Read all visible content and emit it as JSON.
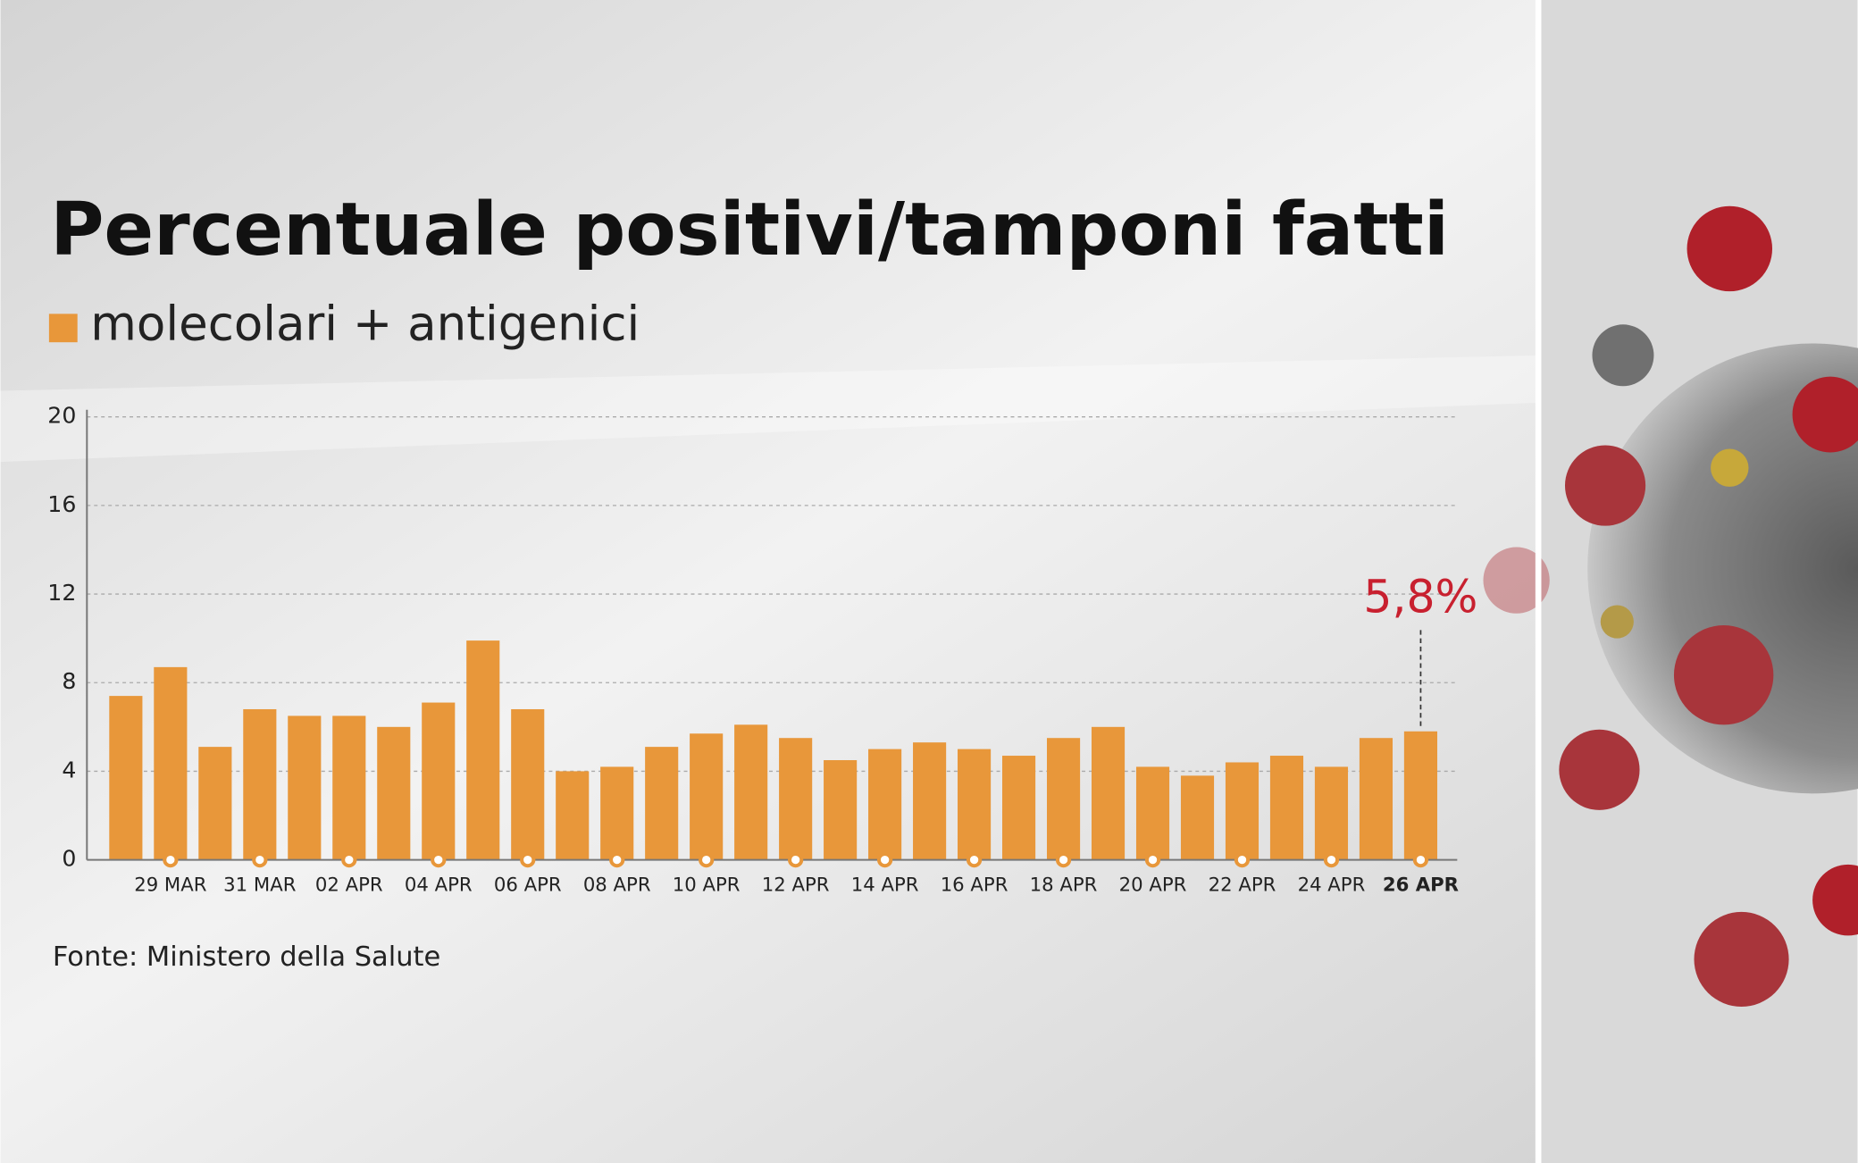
{
  "chart_data": {
    "type": "bar",
    "title": "Percentuale positivi/tamponi fatti",
    "source": "Fonte: Ministero della Salute",
    "categories": [
      null,
      "29 MAR",
      null,
      "31 MAR",
      null,
      "02 APR",
      null,
      "04 APR",
      null,
      "06 APR",
      null,
      "08 APR",
      null,
      "10 APR",
      null,
      "12 APR",
      null,
      "14 APR",
      null,
      "16 APR",
      null,
      "18 APR",
      null,
      "20 APR",
      null,
      "22 APR",
      null,
      "24 APR",
      null,
      "26 APR"
    ],
    "series": [
      {
        "name": "molecolari + antigenici",
        "color": "#e8973a",
        "values": [
          7.4,
          8.7,
          5.1,
          6.8,
          6.5,
          6.5,
          6.0,
          7.1,
          9.9,
          6.8,
          4.0,
          4.2,
          5.1,
          5.7,
          6.1,
          5.5,
          4.5,
          5.0,
          5.3,
          5.0,
          4.7,
          5.5,
          6.0,
          4.2,
          3.8,
          4.4,
          4.7,
          4.2,
          5.5,
          5.8
        ],
        "value_labels": [
          null,
          null,
          null,
          null,
          null,
          null,
          null,
          null,
          null,
          null,
          null,
          null,
          null,
          null,
          null,
          null,
          null,
          null,
          null,
          null,
          null,
          null,
          null,
          null,
          null,
          null,
          null,
          null,
          null,
          "5,8%"
        ]
      }
    ],
    "ylim": [
      0,
      20
    ],
    "yticks": [
      0,
      4,
      8,
      12,
      16,
      20
    ],
    "grid": true
  }
}
